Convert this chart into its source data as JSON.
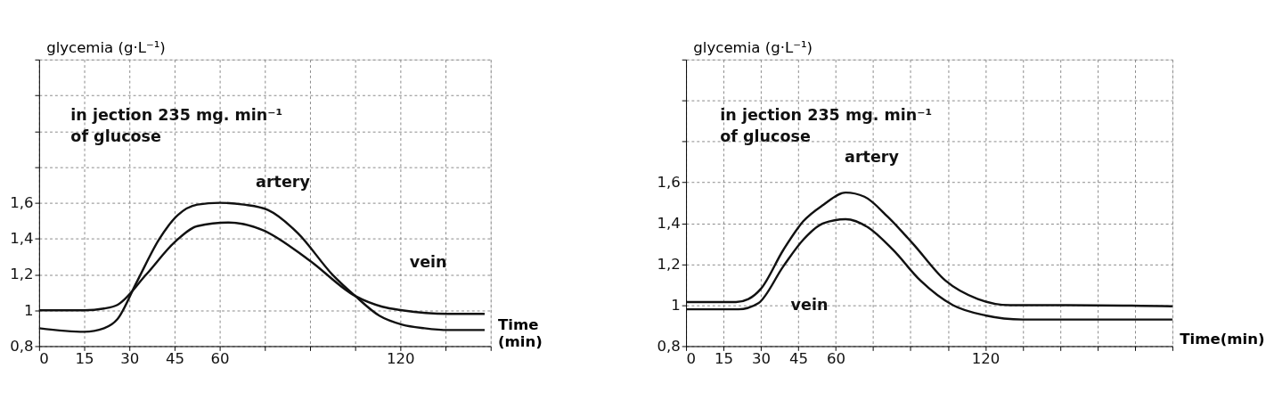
{
  "chart_data": [
    {
      "type": "line",
      "ylabel": "glycemia (g·L⁻¹)",
      "xlabel": "Time\n(min)",
      "grid": true,
      "marker": "none",
      "line_style": "solid",
      "xlim": [
        0,
        150
      ],
      "ylim": [
        0.8,
        2.4
      ],
      "xticks": [
        0,
        15,
        30,
        45,
        60,
        {
          "value": 75,
          "label": null
        },
        {
          "value": 90,
          "label": null
        },
        {
          "value": 105,
          "label": null
        },
        120,
        {
          "value": 135,
          "label": null
        },
        {
          "value": 150,
          "label": null
        }
      ],
      "yticks": [
        {
          "value": 0.8,
          "label": "0,8"
        },
        1,
        {
          "value": 1.2,
          "label": "1,2"
        },
        {
          "value": 1.4,
          "label": "1,4"
        },
        {
          "value": 1.6,
          "label": "1,6"
        },
        {
          "value": 1.8,
          "label": null
        },
        {
          "value": 2.0,
          "label": null
        },
        {
          "value": 2.2,
          "label": null
        },
        {
          "value": 2.4,
          "label": null
        }
      ],
      "annotations": [
        "in jection 235 mg. min⁻¹\nof glucose"
      ],
      "series": [
        {
          "name": "artery",
          "color": "#111111",
          "x": [
            0,
            15,
            21.6,
            26,
            32.5,
            40,
            46,
            52.6,
            60,
            68,
            76,
            86,
            97.4,
            105,
            113,
            120.6,
            128,
            136,
            148
          ],
          "values": [
            0.9,
            0.88,
            0.9,
            0.95,
            1.16,
            1.4,
            1.53,
            1.59,
            1.6,
            1.59,
            1.56,
            1.43,
            1.2,
            1.08,
            0.97,
            0.92,
            0.9,
            0.89,
            0.89
          ]
        },
        {
          "name": "vein",
          "color": "#111111",
          "x": [
            0,
            15,
            21.6,
            26,
            35.6,
            45,
            52.6,
            63,
            74,
            89.7,
            105,
            114,
            120.6,
            136,
            148
          ],
          "values": [
            1.0,
            1.0,
            1.01,
            1.03,
            1.2,
            1.38,
            1.47,
            1.49,
            1.45,
            1.28,
            1.08,
            1.02,
            1.0,
            0.98,
            0.98
          ]
        }
      ]
    },
    {
      "type": "line",
      "ylabel": "glycemia (g·L⁻¹)",
      "xlabel": "Time(min)",
      "grid": true,
      "marker": "none",
      "line_style": "solid",
      "xlim": [
        0,
        195
      ],
      "ylim": [
        0.8,
        2.2
      ],
      "xticks": [
        0,
        15,
        30,
        45,
        60,
        {
          "value": 75,
          "label": null
        },
        {
          "value": 90,
          "label": null
        },
        {
          "value": 105,
          "label": null
        },
        120,
        {
          "value": 135,
          "label": null
        },
        {
          "value": 150,
          "label": null
        },
        {
          "value": 165,
          "label": null
        },
        {
          "value": 180,
          "label": null
        },
        {
          "value": 195,
          "label": null
        }
      ],
      "yticks": [
        {
          "value": 0.8,
          "label": "0,8"
        },
        1,
        {
          "value": 1.2,
          "label": "1,2"
        },
        {
          "value": 1.4,
          "label": "1,4"
        },
        {
          "value": 1.6,
          "label": "1,6"
        },
        {
          "value": 1.8,
          "label": null
        },
        {
          "value": 2.0,
          "label": null
        },
        {
          "value": 2.2,
          "label": null
        }
      ],
      "annotations": [
        "in jection 235 mg. min⁻¹\nof glucose"
      ],
      "series": [
        {
          "name": "artery",
          "color": "#111111",
          "x": [
            0,
            20,
            25,
            30,
            39,
            47,
            55,
            64,
            71.5,
            81,
            91,
            104,
            117,
            130,
            153,
            195
          ],
          "values": [
            1.015,
            1.015,
            1.03,
            1.08,
            1.27,
            1.41,
            1.49,
            1.55,
            1.53,
            1.43,
            1.3,
            1.12,
            1.03,
            1.0,
            1.0,
            0.995
          ]
        },
        {
          "name": "vein",
          "color": "#111111",
          "x": [
            0,
            21,
            29,
            39,
            47,
            55,
            64,
            73,
            83,
            94,
            107,
            120,
            135,
            195
          ],
          "values": [
            0.98,
            0.98,
            1.01,
            1.19,
            1.32,
            1.4,
            1.42,
            1.38,
            1.27,
            1.12,
            1.0,
            0.95,
            0.93,
            0.93
          ]
        }
      ]
    }
  ]
}
